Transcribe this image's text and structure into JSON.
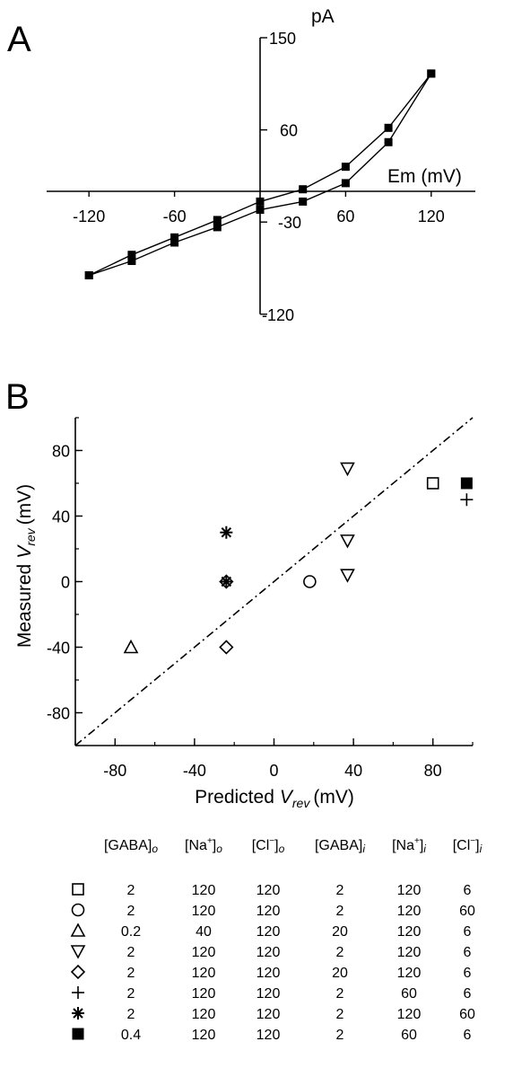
{
  "chart_data": [
    {
      "panel": "A",
      "type": "line",
      "title": "",
      "xlabel": "Em (mV)",
      "ylabel": "pA",
      "xlim": [
        -145,
        145
      ],
      "ylim": [
        -120,
        150
      ],
      "xticks": [
        -120,
        -60,
        60,
        120
      ],
      "yticks": [
        150,
        60,
        -30,
        -120
      ],
      "series": [
        {
          "x": [
            -120,
            -90,
            -60,
            -30,
            0,
            30,
            60,
            90,
            120
          ],
          "y": [
            -82,
            -62,
            -45,
            -28,
            -10,
            2,
            24,
            62,
            115
          ]
        },
        {
          "x": [
            -120,
            -90,
            -60,
            -30,
            0,
            30,
            60,
            90,
            120
          ],
          "y": [
            -82,
            -68,
            -50,
            -35,
            -18,
            -10,
            8,
            48,
            115
          ]
        }
      ]
    },
    {
      "panel": "B",
      "type": "scatter",
      "title": "",
      "xlabel": "Predicted",
      "xlabel_var": "V",
      "xlabel_sub": "rev",
      "xlabel_unit": "(mV)",
      "ylabel": "Measured",
      "ylabel_var": "V",
      "ylabel_sub": "rev",
      "ylabel_unit": "(mV)",
      "xlim": [
        -100,
        100
      ],
      "ylim": [
        -100,
        100
      ],
      "xticks": [
        -80,
        -40,
        0,
        40,
        80
      ],
      "yticks": [
        80,
        40,
        0,
        -40,
        -80
      ],
      "reference_line": {
        "x": [
          -100,
          100
        ],
        "y": [
          -100,
          100
        ],
        "style": "dash-dot"
      },
      "points": [
        {
          "symbol": "square-open",
          "x": 80,
          "y": 60
        },
        {
          "symbol": "circle-open",
          "x": 18,
          "y": 0
        },
        {
          "symbol": "triangle-up-open",
          "x": -72,
          "y": -40
        },
        {
          "symbol": "triangle-down-open",
          "x": 37,
          "y": 69
        },
        {
          "symbol": "triangle-down-open",
          "x": 37,
          "y": 25
        },
        {
          "symbol": "triangle-down-open",
          "x": 37,
          "y": 4
        },
        {
          "symbol": "diamond-open",
          "x": -24,
          "y": -40
        },
        {
          "symbol": "diamond-open",
          "x": -24,
          "y": 0
        },
        {
          "symbol": "plus",
          "x": 97,
          "y": 50
        },
        {
          "symbol": "asterisk",
          "x": -24,
          "y": 30
        },
        {
          "symbol": "asterisk",
          "x": -24,
          "y": 0
        },
        {
          "symbol": "square-filled",
          "x": 97,
          "y": 60
        }
      ]
    }
  ],
  "panel_labels": {
    "a": "A",
    "b": "B"
  },
  "table": {
    "headers": [
      {
        "base": "[GABA]",
        "sup": "",
        "sub": "o"
      },
      {
        "base": "[Na",
        "sup": "+",
        "close": "]",
        "sub": "o"
      },
      {
        "base": "[Cl",
        "sup": "−",
        "close": "]",
        "sub": "o"
      },
      {
        "base": "[GABA]",
        "sup": "",
        "sub": "i"
      },
      {
        "base": "[Na",
        "sup": "+",
        "close": "]",
        "sub": "i"
      },
      {
        "base": "[Cl",
        "sup": "−",
        "close": "]",
        "sub": "i"
      }
    ],
    "rows": [
      {
        "symbol": "square-open",
        "values": [
          "2",
          "120",
          "120",
          "2",
          "120",
          "6"
        ]
      },
      {
        "symbol": "circle-open",
        "values": [
          "2",
          "120",
          "120",
          "2",
          "120",
          "60"
        ]
      },
      {
        "symbol": "triangle-up-open",
        "values": [
          "0.2",
          "40",
          "120",
          "20",
          "120",
          "6"
        ]
      },
      {
        "symbol": "triangle-down-open",
        "values": [
          "2",
          "120",
          "120",
          "2",
          "120",
          "6"
        ]
      },
      {
        "symbol": "diamond-open",
        "values": [
          "2",
          "120",
          "120",
          "20",
          "120",
          "6"
        ]
      },
      {
        "symbol": "plus",
        "values": [
          "2",
          "120",
          "120",
          "2",
          "60",
          "6"
        ]
      },
      {
        "symbol": "asterisk",
        "values": [
          "2",
          "120",
          "120",
          "2",
          "120",
          "60"
        ]
      },
      {
        "symbol": "square-filled",
        "values": [
          "0.4",
          "120",
          "120",
          "2",
          "60",
          "6"
        ]
      }
    ]
  }
}
